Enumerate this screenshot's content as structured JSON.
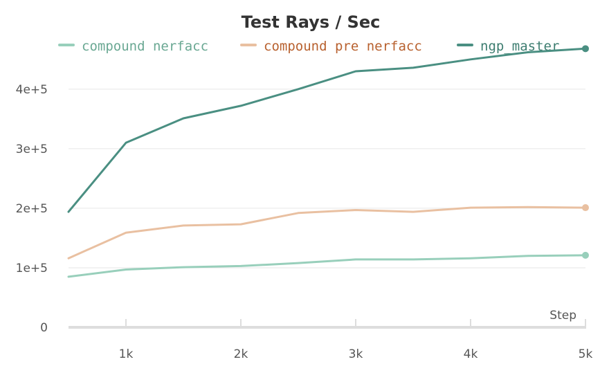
{
  "chart_data": {
    "type": "line",
    "title": "Test Rays / Sec",
    "xlabel": "Step",
    "ylabel": "",
    "xlim": [
      500,
      5000
    ],
    "ylim": [
      0,
      480000
    ],
    "grid": true,
    "legend_position": "top",
    "x_ticks": [
      1000,
      2000,
      3000,
      4000,
      5000
    ],
    "x_tick_labels": [
      "1k",
      "2k",
      "3k",
      "4k",
      "5k"
    ],
    "y_ticks": [
      0,
      100000,
      200000,
      300000,
      400000
    ],
    "y_tick_labels": [
      "0",
      "1e+5",
      "2e+5",
      "3e+5",
      "4e+5"
    ],
    "x": [
      500,
      1000,
      1500,
      2000,
      2500,
      3000,
      3500,
      4000,
      4500,
      5000
    ],
    "series": [
      {
        "name": "compound nerfacc",
        "color": "#98cfbb",
        "text_color": "#6aa893",
        "values": [
          85000,
          97000,
          101000,
          103000,
          108000,
          114000,
          114000,
          116000,
          120000,
          121000
        ]
      },
      {
        "name": "compound pre nerfacc",
        "color": "#e9c0a1",
        "text_color": "#b8612f",
        "values": [
          116000,
          159000,
          171000,
          173000,
          192000,
          197000,
          194000,
          201000,
          202000,
          201000
        ]
      },
      {
        "name": "ngp_master",
        "color": "#4a8f82",
        "text_color": "#3d7d70",
        "values": [
          194000,
          310000,
          351000,
          372000,
          400000,
          430000,
          436000,
          450000,
          462000,
          468000
        ]
      }
    ]
  }
}
